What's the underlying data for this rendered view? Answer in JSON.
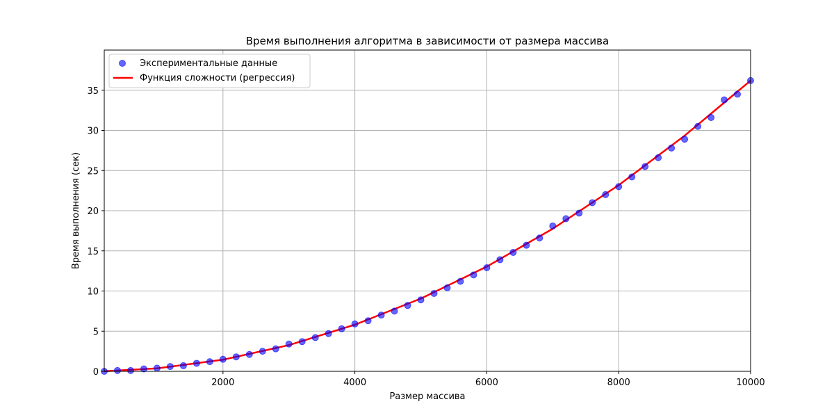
{
  "chart_data": {
    "type": "scatter",
    "title": "Время выполнения алгоритма в зависимости от размера массива",
    "xlabel": "Размер массива",
    "ylabel": "Время выполнения (сек)",
    "xlim": [
      200,
      10000
    ],
    "ylim": [
      0,
      40
    ],
    "xticks": [
      2000,
      4000,
      6000,
      8000,
      10000
    ],
    "yticks": [
      0,
      5,
      10,
      15,
      20,
      25,
      30,
      35
    ],
    "grid": true,
    "legend_position": "upper-left",
    "series": [
      {
        "name": "Экспериментальные данные",
        "kind": "scatter",
        "color": "#0000ff",
        "x": [
          200,
          400,
          600,
          800,
          1000,
          1200,
          1400,
          1600,
          1800,
          2000,
          2200,
          2400,
          2600,
          2800,
          3000,
          3200,
          3400,
          3600,
          3800,
          4000,
          4200,
          4400,
          4600,
          4800,
          5000,
          5200,
          5400,
          5600,
          5800,
          6000,
          6200,
          6400,
          6600,
          6800,
          7000,
          7200,
          7400,
          7600,
          7800,
          8000,
          8200,
          8400,
          8600,
          8800,
          9000,
          9200,
          9400,
          9600,
          9800,
          10000
        ],
        "y": [
          0.0,
          0.1,
          0.1,
          0.3,
          0.4,
          0.6,
          0.7,
          1.0,
          1.2,
          1.5,
          1.8,
          2.1,
          2.5,
          2.8,
          3.4,
          3.7,
          4.2,
          4.7,
          5.3,
          5.9,
          6.3,
          7.0,
          7.5,
          8.2,
          8.9,
          9.7,
          10.4,
          11.2,
          12.0,
          12.9,
          13.9,
          14.8,
          15.7,
          16.6,
          18.1,
          19.0,
          19.7,
          21.0,
          22.0,
          23.0,
          24.2,
          25.5,
          26.6,
          27.8,
          28.9,
          30.5,
          31.6,
          33.8,
          34.5,
          36.2
        ]
      },
      {
        "name": "Функция сложности (регрессия)",
        "kind": "line",
        "color": "#ff0000",
        "x": [
          200,
          1000,
          2000,
          3000,
          4000,
          5000,
          6000,
          7000,
          8000,
          9000,
          10000
        ],
        "y": [
          0.01,
          0.36,
          1.45,
          3.26,
          5.8,
          9.06,
          13.04,
          17.75,
          23.18,
          29.34,
          36.2
        ]
      }
    ]
  }
}
